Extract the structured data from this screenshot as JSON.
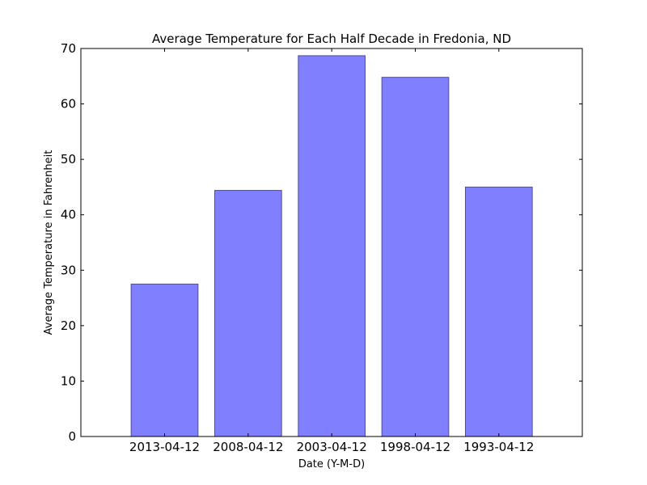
{
  "chart_data": {
    "type": "bar",
    "title": "Average Temperature for Each Half Decade in Fredonia, ND",
    "xlabel": "Date (Y-M-D)",
    "ylabel": "Average Temperature in Fahrenheit",
    "categories": [
      "2013-04-12",
      "2008-04-12",
      "2003-04-12",
      "1998-04-12",
      "1993-04-12"
    ],
    "values": [
      27.5,
      44.4,
      68.7,
      64.8,
      45.0
    ],
    "ylim": [
      0,
      70
    ],
    "yticks": [
      "0",
      "10",
      "20",
      "30",
      "40",
      "50",
      "60",
      "70"
    ],
    "grid": false,
    "legend": "none",
    "bar_color": "#8080ff",
    "bar_edge_color": "#4d4d99"
  }
}
